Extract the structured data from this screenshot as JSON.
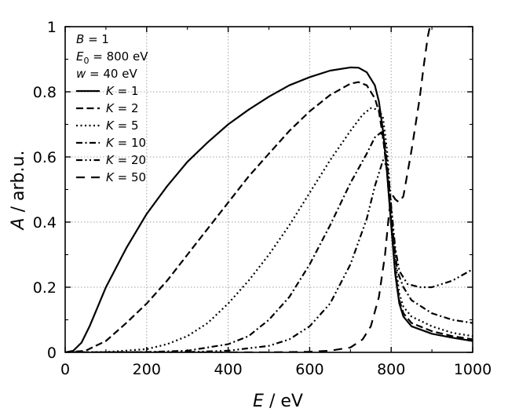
{
  "chart_data": {
    "type": "line",
    "title": "",
    "xlabel": {
      "symbol": "E",
      "unit": " / eV"
    },
    "ylabel": {
      "symbol": "A",
      "unit": " / arb.u."
    },
    "xlim": [
      0,
      1000
    ],
    "ylim": [
      0,
      1
    ],
    "xticks": [
      0,
      200,
      400,
      600,
      800,
      1000
    ],
    "xtick_labels": [
      "0",
      "200",
      "400",
      "600",
      "800",
      "1000"
    ],
    "yticks": [
      0,
      0.2,
      0.4,
      0.6,
      0.8,
      1
    ],
    "ytick_labels": [
      "0",
      "0.2",
      "0.4",
      "0.6",
      "0.8",
      "1"
    ],
    "grid": true,
    "legend_position": "top-left",
    "annotations": [
      {
        "symbol": "B",
        "sub": "",
        "text": " = 1"
      },
      {
        "symbol": "E",
        "sub": "0",
        "text": " = 800 eV"
      },
      {
        "symbol": "w",
        "sub": "",
        "text": " = 40 eV"
      }
    ],
    "series": [
      {
        "name": "K = 1",
        "symbol": "K",
        "value_text": " = 1",
        "style": "solid",
        "x": [
          0,
          20,
          40,
          60,
          80,
          100,
          150,
          200,
          250,
          300,
          350,
          400,
          450,
          500,
          550,
          600,
          650,
          700,
          720,
          740,
          760,
          770,
          780,
          790,
          800,
          810,
          820,
          830,
          850,
          900,
          950,
          1000
        ],
        "y": [
          0,
          0.005,
          0.03,
          0.08,
          0.14,
          0.2,
          0.32,
          0.425,
          0.51,
          0.585,
          0.645,
          0.7,
          0.745,
          0.785,
          0.82,
          0.845,
          0.865,
          0.875,
          0.874,
          0.86,
          0.82,
          0.77,
          0.68,
          0.55,
          0.39,
          0.24,
          0.15,
          0.11,
          0.08,
          0.057,
          0.045,
          0.035
        ]
      },
      {
        "name": "K = 2",
        "symbol": "K",
        "value_text": " = 2",
        "style": "dashed",
        "x": [
          0,
          50,
          100,
          150,
          200,
          250,
          300,
          350,
          400,
          450,
          500,
          550,
          600,
          650,
          700,
          720,
          740,
          760,
          770,
          780,
          790,
          800,
          810,
          820,
          830,
          850,
          900,
          950,
          1000
        ],
        "y": [
          0,
          0.005,
          0.035,
          0.09,
          0.15,
          0.22,
          0.3,
          0.38,
          0.46,
          0.54,
          0.61,
          0.68,
          0.74,
          0.79,
          0.825,
          0.83,
          0.82,
          0.78,
          0.74,
          0.66,
          0.55,
          0.4,
          0.25,
          0.16,
          0.12,
          0.09,
          0.065,
          0.05,
          0.04
        ]
      },
      {
        "name": "K = 5",
        "symbol": "K",
        "value_text": " = 5",
        "style": "dotted",
        "x": [
          0,
          100,
          200,
          250,
          300,
          350,
          400,
          450,
          500,
          550,
          600,
          650,
          700,
          730,
          750,
          770,
          780,
          790,
          800,
          810,
          820,
          830,
          850,
          900,
          950,
          1000
        ],
        "y": [
          0,
          0.001,
          0.01,
          0.025,
          0.05,
          0.09,
          0.15,
          0.22,
          0.3,
          0.39,
          0.49,
          0.59,
          0.68,
          0.73,
          0.75,
          0.745,
          0.72,
          0.62,
          0.45,
          0.28,
          0.18,
          0.14,
          0.11,
          0.08,
          0.06,
          0.05
        ]
      },
      {
        "name": "K = 10",
        "symbol": "K",
        "value_text": " = 10",
        "style": "dashdot",
        "x": [
          0,
          200,
          300,
          400,
          450,
          500,
          550,
          600,
          650,
          700,
          740,
          760,
          775,
          785,
          795,
          805,
          815,
          830,
          850,
          900,
          950,
          1000
        ],
        "y": [
          0,
          0.001,
          0.005,
          0.025,
          0.05,
          0.1,
          0.17,
          0.27,
          0.39,
          0.52,
          0.61,
          0.66,
          0.675,
          0.64,
          0.52,
          0.36,
          0.25,
          0.2,
          0.16,
          0.12,
          0.1,
          0.09
        ]
      },
      {
        "name": "K = 20",
        "symbol": "K",
        "value_text": " = 20",
        "style": "dashdotdot",
        "x": [
          0,
          300,
          400,
          500,
          550,
          600,
          650,
          700,
          740,
          760,
          780,
          790,
          800,
          810,
          820,
          840,
          870,
          900,
          950,
          1000
        ],
        "y": [
          0,
          0.001,
          0.005,
          0.02,
          0.04,
          0.08,
          0.15,
          0.27,
          0.41,
          0.51,
          0.59,
          0.57,
          0.45,
          0.32,
          0.25,
          0.21,
          0.2,
          0.2,
          0.22,
          0.255
        ]
      },
      {
        "name": "K = 50",
        "symbol": "K",
        "value_text": " = 50",
        "style": "longdash",
        "x": [
          0,
          500,
          600,
          650,
          700,
          730,
          750,
          770,
          785,
          795,
          800,
          805,
          810,
          820,
          830,
          850,
          870,
          880,
          890,
          895
        ],
        "y": [
          0,
          0.0,
          0.002,
          0.005,
          0.015,
          0.04,
          0.08,
          0.17,
          0.3,
          0.43,
          0.47,
          0.48,
          0.47,
          0.46,
          0.48,
          0.62,
          0.78,
          0.88,
          0.97,
          1.0
        ]
      }
    ]
  }
}
